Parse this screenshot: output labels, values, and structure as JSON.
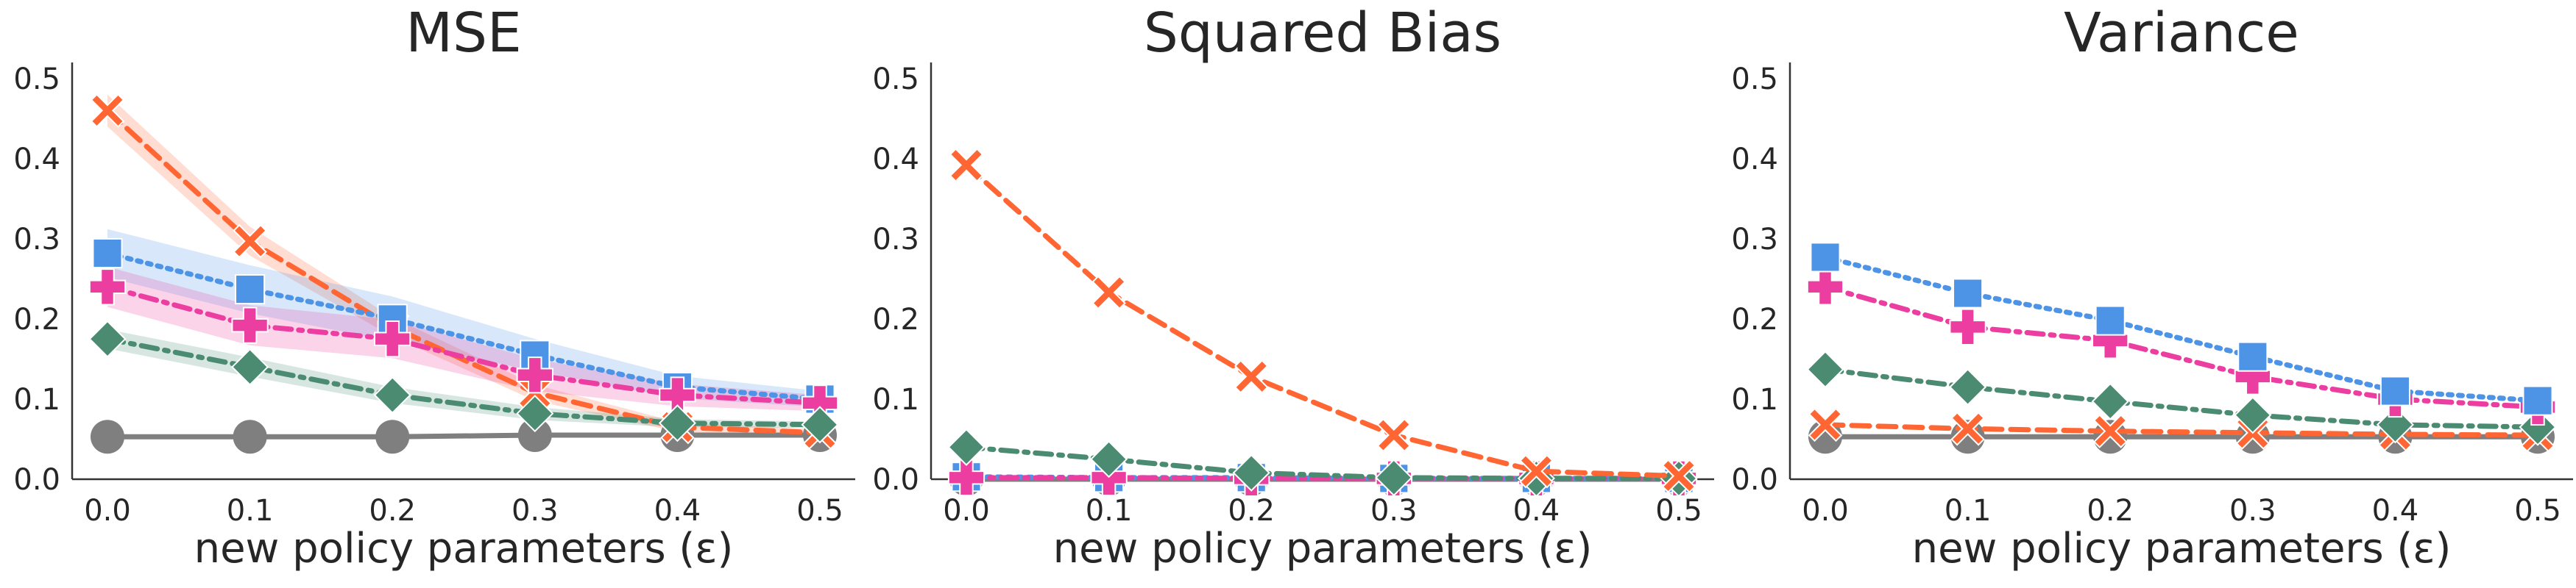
{
  "chart_data": [
    {
      "type": "line",
      "title": "MSE",
      "xlabel": "new policy parameters (ε)",
      "ylabel": "",
      "x": [
        0.0,
        0.1,
        0.2,
        0.3,
        0.4,
        0.5
      ],
      "xtick_labels": [
        "0.0",
        "0.1",
        "0.2",
        "0.3",
        "0.4",
        "0.5"
      ],
      "yticks": [
        0.0,
        0.1,
        0.2,
        0.3,
        0.4,
        0.5
      ],
      "ytick_labels": [
        "0.0",
        "0.1",
        "0.2",
        "0.3",
        "0.4",
        "0.5"
      ],
      "ylim": [
        0.0,
        0.52
      ],
      "grid": false,
      "series": [
        {
          "color": "#7f7f7f",
          "marker": "circle",
          "linestyle": "solid",
          "values": [
            0.053,
            0.053,
            0.053,
            0.055,
            0.055,
            0.055
          ],
          "band": [
            0.0,
            0.0,
            0.0,
            0.0,
            0.0,
            0.0
          ]
        },
        {
          "color": "#ff6633",
          "marker": "x",
          "linestyle": "dashed",
          "values": [
            0.46,
            0.297,
            0.19,
            0.108,
            0.065,
            0.058
          ],
          "band": [
            0.02,
            0.018,
            0.012,
            0.01,
            0.006,
            0.004
          ]
        },
        {
          "color": "#4d94e6",
          "marker": "square",
          "linestyle": "dotted",
          "values": [
            0.282,
            0.237,
            0.2,
            0.155,
            0.115,
            0.1
          ],
          "band": [
            0.03,
            0.03,
            0.028,
            0.02,
            0.014,
            0.01
          ]
        },
        {
          "color": "#ec3da0",
          "marker": "plus",
          "linestyle": "dashdot",
          "values": [
            0.24,
            0.192,
            0.175,
            0.13,
            0.105,
            0.095
          ],
          "band": [
            0.025,
            0.025,
            0.024,
            0.02,
            0.014,
            0.01
          ]
        },
        {
          "color": "#4b8b72",
          "marker": "diamond",
          "linestyle": "dashdot",
          "values": [
            0.175,
            0.14,
            0.105,
            0.082,
            0.07,
            0.068
          ],
          "band": [
            0.012,
            0.012,
            0.01,
            0.008,
            0.005,
            0.004
          ]
        }
      ]
    },
    {
      "type": "line",
      "title": "Squared Bias",
      "xlabel": "new policy parameters (ε)",
      "ylabel": "",
      "x": [
        0.0,
        0.1,
        0.2,
        0.3,
        0.4,
        0.5
      ],
      "xtick_labels": [
        "0.0",
        "0.1",
        "0.2",
        "0.3",
        "0.4",
        "0.5"
      ],
      "yticks": [
        0.0,
        0.1,
        0.2,
        0.3,
        0.4,
        0.5
      ],
      "ytick_labels": [
        "0.0",
        "0.1",
        "0.2",
        "0.3",
        "0.4",
        "0.5"
      ],
      "ylim": [
        0.0,
        0.52
      ],
      "grid": false,
      "series": [
        {
          "color": "#7f7f7f",
          "marker": "circle",
          "linestyle": "solid",
          "values": [
            0.0,
            0.0,
            0.0,
            0.0,
            0.0,
            0.0
          ],
          "band": [
            0,
            0,
            0,
            0,
            0,
            0
          ]
        },
        {
          "color": "#4d94e6",
          "marker": "square",
          "linestyle": "dotted",
          "values": [
            0.003,
            0.002,
            0.002,
            0.001,
            0.001,
            0.001
          ],
          "band": [
            0,
            0,
            0,
            0,
            0,
            0
          ]
        },
        {
          "color": "#ec3da0",
          "marker": "plus",
          "linestyle": "dashdot",
          "values": [
            0.002,
            0.002,
            0.001,
            0.001,
            0.001,
            0.001
          ],
          "band": [
            0,
            0,
            0,
            0,
            0,
            0
          ]
        },
        {
          "color": "#4b8b72",
          "marker": "diamond",
          "linestyle": "dashdot",
          "values": [
            0.04,
            0.025,
            0.008,
            0.002,
            0.001,
            0.001
          ],
          "band": [
            0,
            0,
            0,
            0,
            0,
            0
          ]
        },
        {
          "color": "#ff6633",
          "marker": "x",
          "linestyle": "dashed",
          "values": [
            0.392,
            0.233,
            0.128,
            0.055,
            0.01,
            0.004
          ],
          "band": [
            0,
            0,
            0,
            0,
            0,
            0
          ]
        }
      ]
    },
    {
      "type": "line",
      "title": "Variance",
      "xlabel": "new policy parameters (ε)",
      "ylabel": "",
      "x": [
        0.0,
        0.1,
        0.2,
        0.3,
        0.4,
        0.5
      ],
      "xtick_labels": [
        "0.0",
        "0.1",
        "0.2",
        "0.3",
        "0.4",
        "0.5"
      ],
      "yticks": [
        0.0,
        0.1,
        0.2,
        0.3,
        0.4,
        0.5
      ],
      "ytick_labels": [
        "0.0",
        "0.1",
        "0.2",
        "0.3",
        "0.4",
        "0.5"
      ],
      "ylim": [
        0.0,
        0.52
      ],
      "grid": false,
      "series": [
        {
          "color": "#7f7f7f",
          "marker": "circle",
          "linestyle": "solid",
          "values": [
            0.053,
            0.053,
            0.053,
            0.053,
            0.053,
            0.053
          ],
          "band": [
            0,
            0,
            0,
            0,
            0,
            0
          ]
        },
        {
          "color": "#ff6633",
          "marker": "x",
          "linestyle": "dashed",
          "values": [
            0.068,
            0.063,
            0.06,
            0.058,
            0.056,
            0.055
          ],
          "band": [
            0,
            0,
            0,
            0,
            0,
            0
          ]
        },
        {
          "color": "#4b8b72",
          "marker": "diamond",
          "linestyle": "dashdot",
          "values": [
            0.137,
            0.115,
            0.097,
            0.08,
            0.068,
            0.065
          ],
          "band": [
            0,
            0,
            0,
            0,
            0,
            0
          ]
        },
        {
          "color": "#ec3da0",
          "marker": "plus",
          "linestyle": "dashdot",
          "values": [
            0.24,
            0.19,
            0.173,
            0.128,
            0.1,
            0.09
          ],
          "band": [
            0,
            0,
            0,
            0,
            0,
            0
          ]
        },
        {
          "color": "#4d94e6",
          "marker": "square",
          "linestyle": "dotted",
          "values": [
            0.277,
            0.232,
            0.198,
            0.153,
            0.11,
            0.098
          ],
          "band": [
            0,
            0,
            0,
            0,
            0,
            0
          ]
        }
      ]
    }
  ]
}
